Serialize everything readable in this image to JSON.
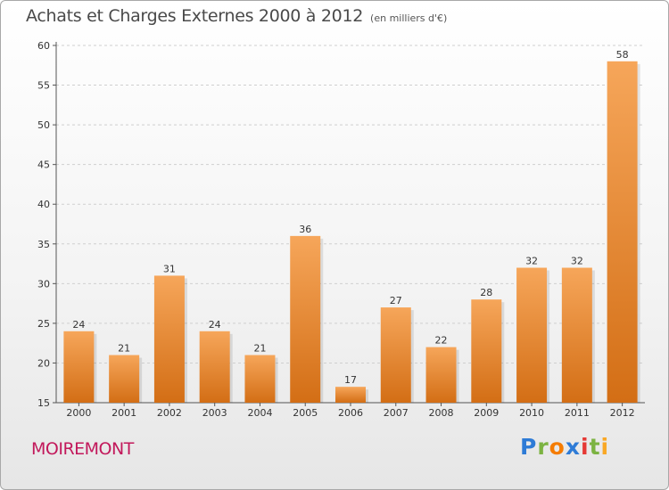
{
  "title": "Achats et Charges Externes 2000 à 2012",
  "subtitle": "(en milliers d'€)",
  "location": "MOIREMONT",
  "brand": {
    "letters": [
      "P",
      "r",
      "o",
      "x",
      "i",
      "t",
      "i"
    ],
    "colors": [
      "#2e7bd6",
      "#7cb342",
      "#f57c00",
      "#2e7bd6",
      "#e53935",
      "#7cb342",
      "#f9a825"
    ]
  },
  "colors": {
    "bar_top": "#f6a65a",
    "bar_bottom": "#d36e15",
    "grid": "#cfcfcf",
    "axis": "#555555",
    "location": "#c2185b"
  },
  "chart_data": {
    "type": "bar",
    "categories": [
      "2000",
      "2001",
      "2002",
      "2003",
      "2004",
      "2005",
      "2006",
      "2007",
      "2008",
      "2009",
      "2010",
      "2011",
      "2012"
    ],
    "values": [
      24,
      21,
      31,
      24,
      21,
      36,
      17,
      27,
      22,
      28,
      32,
      32,
      58
    ],
    "ylim": [
      15,
      60
    ],
    "yticks": [
      15,
      20,
      25,
      30,
      35,
      40,
      45,
      50,
      55,
      60
    ],
    "grid": true
  }
}
